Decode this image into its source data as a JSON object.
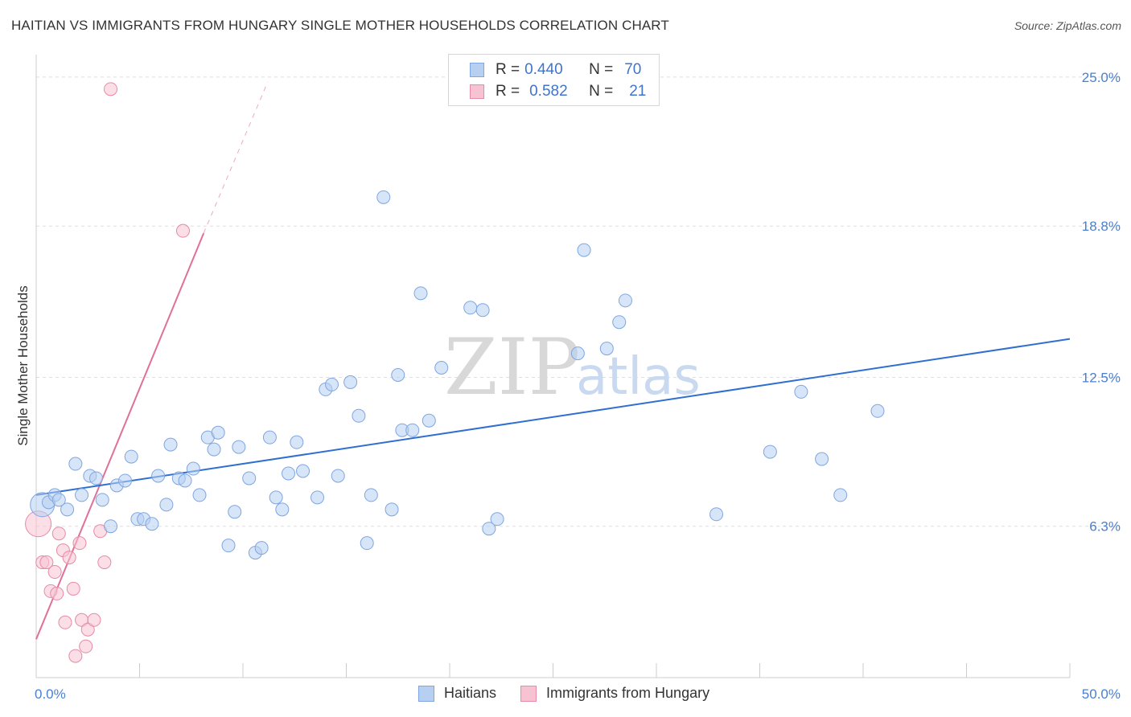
{
  "title": "HAITIAN VS IMMIGRANTS FROM HUNGARY SINGLE MOTHER HOUSEHOLDS CORRELATION CHART",
  "source": "Source: ZipAtlas.com",
  "watermark": {
    "zip": "ZIP",
    "atlas": "atlas"
  },
  "legend": {
    "rows": [
      {
        "r_label": "R =",
        "r_value": "0.440",
        "n_label": "N =",
        "n_value": "70"
      },
      {
        "r_label": "R =",
        "r_value": "0.582",
        "n_label": "N =",
        "n_value": "21"
      }
    ]
  },
  "bottom_legend": {
    "series1": "Haitians",
    "series2": "Immigrants from Hungary"
  },
  "colors": {
    "blue_fill": "#b7d0f2",
    "blue_stroke": "#7fa6e0",
    "blue_line": "#2f6fd0",
    "pink_fill": "#f7c3d2",
    "pink_stroke": "#e78aa6",
    "pink_line": "#e0709a",
    "grid": "#dddddd",
    "axis_text": "#4a7fd0"
  },
  "chart_data": {
    "type": "scatter",
    "title": "HAITIAN VS IMMIGRANTS FROM HUNGARY SINGLE MOTHER HOUSEHOLDS CORRELATION CHART",
    "xlabel": "",
    "ylabel": "Single Mother Households",
    "xlim": [
      0,
      50
    ],
    "ylim": [
      0,
      25.7
    ],
    "x_tick_labels": [
      "0.0%",
      "50.0%"
    ],
    "y_ticks": [
      6.3,
      12.5,
      18.8,
      25.0
    ],
    "y_tick_labels": [
      "6.3%",
      "12.5%",
      "18.8%",
      "25.0%"
    ],
    "grid": true,
    "series": [
      {
        "name": "Haitians",
        "r": 0.44,
        "n": 70,
        "trend": {
          "x": [
            0,
            50
          ],
          "y": [
            7.6,
            14.1
          ]
        },
        "points": [
          [
            0.3,
            7.2
          ],
          [
            0.6,
            7.3
          ],
          [
            0.9,
            7.6
          ],
          [
            1.1,
            7.4
          ],
          [
            1.5,
            7.0
          ],
          [
            1.9,
            8.9
          ],
          [
            2.2,
            7.6
          ],
          [
            2.6,
            8.4
          ],
          [
            2.9,
            8.3
          ],
          [
            3.2,
            7.4
          ],
          [
            3.6,
            6.3
          ],
          [
            3.9,
            8.0
          ],
          [
            4.3,
            8.2
          ],
          [
            4.6,
            9.2
          ],
          [
            4.9,
            6.6
          ],
          [
            5.2,
            6.6
          ],
          [
            5.6,
            6.4
          ],
          [
            5.9,
            8.4
          ],
          [
            6.3,
            7.2
          ],
          [
            6.5,
            9.7
          ],
          [
            6.9,
            8.3
          ],
          [
            7.2,
            8.2
          ],
          [
            7.6,
            8.7
          ],
          [
            7.9,
            7.6
          ],
          [
            8.3,
            10.0
          ],
          [
            8.6,
            9.5
          ],
          [
            8.8,
            10.2
          ],
          [
            9.3,
            5.5
          ],
          [
            9.6,
            6.9
          ],
          [
            9.8,
            9.6
          ],
          [
            10.3,
            8.3
          ],
          [
            10.6,
            5.2
          ],
          [
            10.9,
            5.4
          ],
          [
            11.3,
            10.0
          ],
          [
            11.6,
            7.5
          ],
          [
            11.9,
            7.0
          ],
          [
            12.2,
            8.5
          ],
          [
            12.6,
            9.8
          ],
          [
            12.9,
            8.6
          ],
          [
            13.6,
            7.5
          ],
          [
            14.0,
            12.0
          ],
          [
            14.3,
            12.2
          ],
          [
            14.6,
            8.4
          ],
          [
            15.2,
            12.3
          ],
          [
            15.6,
            10.9
          ],
          [
            16.0,
            5.6
          ],
          [
            16.2,
            7.6
          ],
          [
            16.8,
            20.0
          ],
          [
            17.2,
            7.0
          ],
          [
            17.5,
            12.6
          ],
          [
            17.7,
            10.3
          ],
          [
            18.2,
            10.3
          ],
          [
            18.6,
            16.0
          ],
          [
            19.0,
            10.7
          ],
          [
            19.6,
            12.9
          ],
          [
            21.0,
            15.4
          ],
          [
            21.6,
            15.3
          ],
          [
            21.9,
            6.2
          ],
          [
            22.3,
            6.6
          ],
          [
            26.2,
            13.5
          ],
          [
            26.5,
            17.8
          ],
          [
            27.6,
            13.7
          ],
          [
            28.2,
            14.8
          ],
          [
            28.5,
            15.7
          ],
          [
            32.9,
            6.8
          ],
          [
            35.5,
            9.4
          ],
          [
            37.0,
            11.9
          ],
          [
            38.0,
            9.1
          ],
          [
            38.9,
            7.6
          ],
          [
            40.7,
            11.1
          ]
        ]
      },
      {
        "name": "Immigrants from Hungary",
        "r": 0.582,
        "n": 21,
        "trend": {
          "x": [
            0,
            8.1
          ],
          "y": [
            1.6,
            18.5
          ]
        },
        "trend_extension": {
          "x": [
            8.1,
            11.2
          ],
          "y": [
            18.5,
            24.8
          ]
        },
        "points": [
          [
            0.1,
            6.4
          ],
          [
            0.3,
            4.8
          ],
          [
            0.5,
            4.8
          ],
          [
            0.7,
            3.6
          ],
          [
            0.9,
            4.4
          ],
          [
            1.0,
            3.5
          ],
          [
            1.1,
            6.0
          ],
          [
            1.3,
            5.3
          ],
          [
            1.4,
            2.3
          ],
          [
            1.6,
            5.0
          ],
          [
            1.8,
            3.7
          ],
          [
            1.9,
            0.9
          ],
          [
            2.1,
            5.6
          ],
          [
            2.2,
            2.4
          ],
          [
            2.4,
            1.3
          ],
          [
            2.5,
            2.0
          ],
          [
            2.8,
            2.4
          ],
          [
            3.1,
            6.1
          ],
          [
            3.3,
            4.8
          ],
          [
            3.6,
            24.5
          ],
          [
            7.1,
            18.6
          ]
        ]
      }
    ]
  }
}
